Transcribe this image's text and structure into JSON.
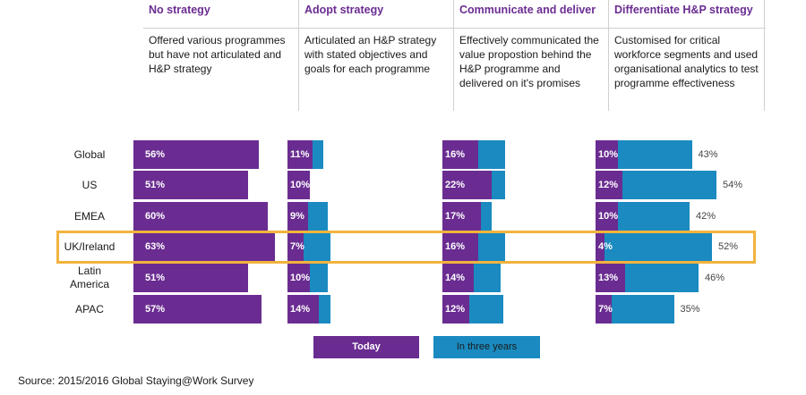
{
  "columns": [
    {
      "title": "No strategy",
      "description": "Offered various programmes but have not articulated and H&P strategy"
    },
    {
      "title": "Adopt strategy",
      "description": "Articulated an H&P strategy with stated objectives and goals for each programme"
    },
    {
      "title": "Communicate and deliver",
      "description": "Effectively communicated the value propostion behind the H&P programme and delivered on it's promises"
    },
    {
      "title": "Differentiate H&P strategy",
      "description": "Customised for critical workforce segments and used organisational analytics to test programme effectiveness"
    }
  ],
  "chart_data": {
    "type": "bar",
    "orientation": "horizontal",
    "stacked": true,
    "categories": [
      "Global",
      "US",
      "EMEA",
      "UK/Ireland",
      "Latin America",
      "APAC"
    ],
    "highlighted_category": "UK/Ireland",
    "panels": [
      {
        "title": "No strategy",
        "series": [
          {
            "name": "Today",
            "values": [
              56,
              51,
              60,
              63,
              51,
              57
            ],
            "labels": [
              "56%",
              "51%",
              "60%",
              "63%",
              "51%",
              "57%"
            ]
          }
        ]
      },
      {
        "title": "Adopt strategy",
        "series": [
          {
            "name": "Today",
            "values": [
              11,
              10,
              9,
              7,
              10,
              14
            ],
            "labels": [
              "11%",
              "10%",
              "9%",
              "7%",
              "10%",
              "14%"
            ]
          },
          {
            "name": "In three years",
            "values": [
              16,
              10,
              18,
              19,
              18,
              19
            ],
            "labels": [
              "",
              "",
              "",
              "",
              "",
              ""
            ]
          }
        ]
      },
      {
        "title": "Communicate and deliver",
        "series": [
          {
            "name": "Today",
            "values": [
              16,
              22,
              17,
              16,
              14,
              12
            ],
            "labels": [
              "16%",
              "22%",
              "17%",
              "16%",
              "14%",
              "12%"
            ]
          },
          {
            "name": "In three years",
            "values": [
              28,
              28,
              22,
              28,
              26,
              27
            ],
            "labels": [
              "",
              "",
              "",
              "",
              "",
              ""
            ]
          }
        ]
      },
      {
        "title": "Differentiate H&P strategy",
        "series": [
          {
            "name": "Today",
            "values": [
              10,
              12,
              10,
              4,
              13,
              7
            ],
            "labels": [
              "10%",
              "12%",
              "10%",
              "4%",
              "13%",
              "7%"
            ]
          },
          {
            "name": "In three years",
            "values": [
              43,
              54,
              42,
              52,
              46,
              35
            ],
            "labels": [
              "43%",
              "54%",
              "42%",
              "52%",
              "46%",
              "35%"
            ]
          }
        ]
      }
    ],
    "legend": [
      {
        "name": "Today",
        "color": "#6a2c91"
      },
      {
        "name": "In three years",
        "color": "#1a8ac0"
      }
    ]
  },
  "source": "Source: 2015/2016 Global Staying@Work Survey",
  "colors": {
    "today": "#6a2c91",
    "three_years": "#1a8ac0",
    "highlight": "#f2b33d"
  }
}
